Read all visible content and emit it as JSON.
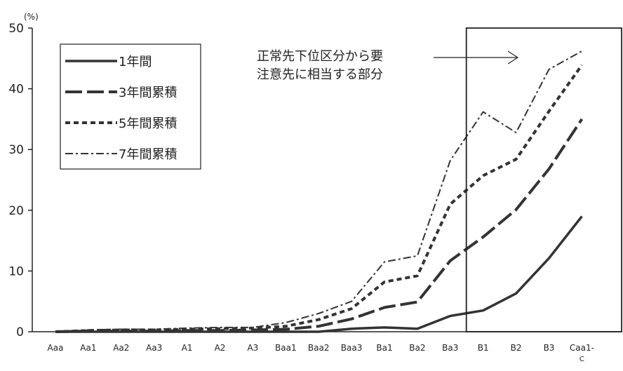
{
  "chart_data": {
    "type": "line",
    "unit_label": "(%)",
    "categories": [
      "Aaa",
      "Aa1",
      "Aa2",
      "Aa3",
      "A1",
      "A2",
      "A3",
      "Baa1",
      "Baa2",
      "Baa3",
      "Ba1",
      "Ba2",
      "Ba3",
      "B1",
      "B2",
      "B3",
      "Caa1-C"
    ],
    "y_ticks": [
      "0",
      "10",
      "20",
      "30",
      "40",
      "50"
    ],
    "ylim": [
      0,
      50
    ],
    "grid": false,
    "legend_position": "top-left",
    "series": [
      {
        "name": "1年間",
        "style": "solid",
        "values": [
          0,
          0,
          0,
          0,
          0,
          0,
          0,
          0,
          0,
          0.5,
          0.7,
          0.5,
          2.6,
          3.5,
          6.3,
          12.1,
          19.0
        ]
      },
      {
        "name": "3年間累積",
        "style": "long-dash",
        "values": [
          0,
          0.1,
          0.1,
          0.1,
          0.2,
          0.2,
          0.3,
          0.4,
          0.9,
          2.1,
          4.0,
          4.9,
          11.7,
          15.6,
          20.1,
          26.8,
          35.0
        ]
      },
      {
        "name": "5年間累積",
        "style": "short-dash",
        "values": [
          0,
          0.2,
          0.3,
          0.3,
          0.4,
          0.5,
          0.6,
          0.9,
          2.0,
          3.8,
          8.2,
          9.2,
          21.0,
          25.7,
          28.4,
          36.3,
          43.9
        ]
      },
      {
        "name": "7年間累積",
        "style": "dash-dot",
        "values": [
          0,
          0.3,
          0.4,
          0.4,
          0.6,
          0.7,
          0.7,
          1.5,
          3.0,
          5.0,
          11.5,
          12.5,
          28.2,
          36.2,
          32.8,
          43.2,
          46.2
        ]
      }
    ],
    "annotation": {
      "text_lines": [
        "正常先下位区分から要",
        "注意先に相当する部分"
      ],
      "arrow": "→",
      "highlight_categories": [
        "B1",
        "B2",
        "B3",
        "Caa1-C"
      ]
    },
    "x_last_label_lines": [
      "Caa1-",
      "C"
    ]
  }
}
